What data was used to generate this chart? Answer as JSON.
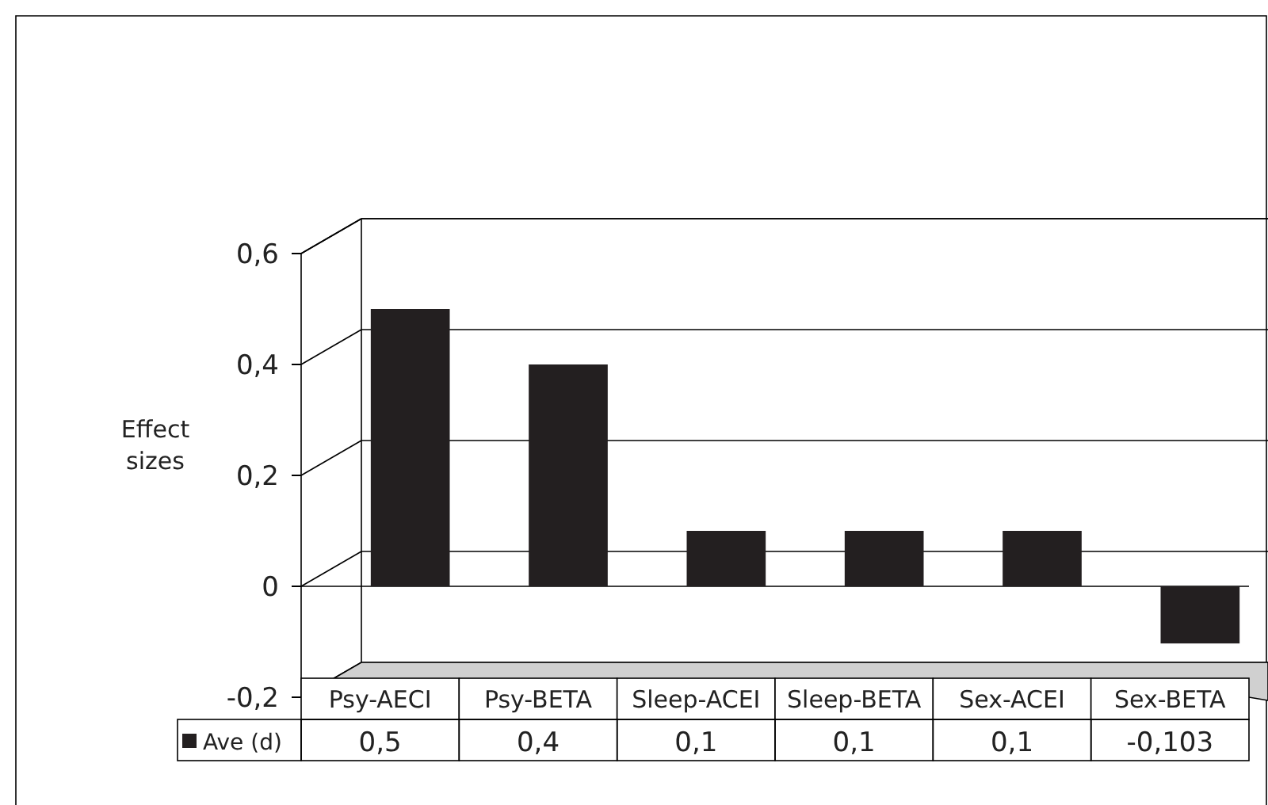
{
  "chart_data": {
    "type": "bar",
    "ylabel": "Effect sizes",
    "categories": [
      "Psy-AECI",
      "Psy-BETA",
      "Sleep-ACEI",
      "Sleep-BETA",
      "Sex-ACEI",
      "Sex-BETA"
    ],
    "series": [
      {
        "name": "Ave (d)",
        "color": "#231f20",
        "values": [
          0.5,
          0.4,
          0.1,
          0.1,
          0.1,
          -0.103
        ],
        "value_labels": [
          "0,5",
          "0,4",
          "0,1",
          "0,1",
          "0,1",
          "-0,103"
        ]
      }
    ],
    "ylim": [
      -0.2,
      0.6
    ],
    "yticks": [
      {
        "value": -0.2,
        "label": "-0,2"
      },
      0,
      {
        "value": 0.2,
        "label": "0,2"
      },
      {
        "value": 0.4,
        "label": "0,4"
      },
      {
        "value": 0.6,
        "label": "0,6"
      }
    ],
    "grid": "y",
    "legend": "bottom left"
  }
}
